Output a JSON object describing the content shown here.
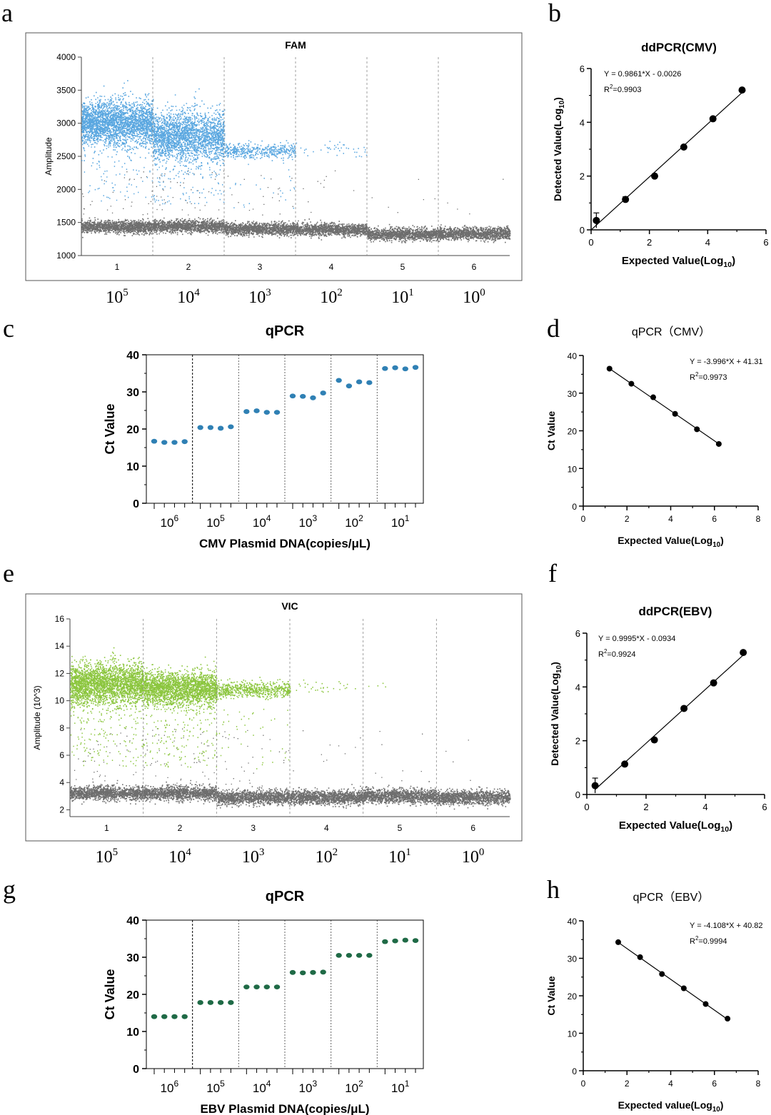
{
  "panels": {
    "a": "a",
    "b": "b",
    "c": "c",
    "d": "d",
    "e": "e",
    "f": "f",
    "g": "g",
    "h": "h"
  },
  "colors": {
    "fam_positive": "#5aa7e0",
    "vic_positive": "#8cc63f",
    "negative": "#6e6e6e",
    "qpcr_cmv": "#2f80b4",
    "qpcr_ebv": "#1f6a46",
    "fit": "#000000"
  },
  "chart_data": [
    {
      "id": "a",
      "type": "scatter",
      "title": "FAM",
      "ylabel": "Amplitude",
      "ylim": [
        1000,
        4000
      ],
      "yticks": [
        1000,
        1500,
        2000,
        2500,
        3000,
        3500,
        4000
      ],
      "wells": [
        "1",
        "2",
        "3",
        "4",
        "5",
        "6"
      ],
      "concentration_labels": [
        [
          "10",
          "5"
        ],
        [
          "10",
          "4"
        ],
        [
          "10",
          "3"
        ],
        [
          "10",
          "2"
        ],
        [
          "10",
          "1"
        ],
        [
          "10",
          "0"
        ]
      ],
      "positive_band_centers": [
        3000,
        2800,
        2580,
        null,
        null,
        null
      ],
      "negative_band_center": [
        1430,
        1440,
        1400,
        1390,
        1320,
        1330
      ]
    },
    {
      "id": "b",
      "type": "scatter",
      "title": "ddPCR(CMV)",
      "xlabel": "Expected Value(Log",
      "xlabel_sub": "10",
      "xlabel_end": ")",
      "ylabel": "Detected Value(Log",
      "ylabel_sub": "10",
      "ylabel_end": ")",
      "xlim": [
        0,
        6
      ],
      "ylim": [
        0,
        6
      ],
      "xticks": [
        0,
        2,
        4,
        6
      ],
      "yticks": [
        0,
        2,
        4,
        6
      ],
      "equation": "Y = 0.9861*X - 0.0026",
      "r2_prefix": "R",
      "r2_value": "=0.9903",
      "x": [
        0.18,
        1.18,
        2.18,
        3.18,
        4.18,
        5.18
      ],
      "y": [
        0.35,
        1.13,
        2.0,
        3.08,
        4.13,
        5.2
      ],
      "err": [
        0.28,
        0.1,
        0,
        0,
        0,
        0
      ],
      "fit": [
        [
          0,
          -0.0026
        ],
        [
          5.2,
          5.125
        ]
      ]
    },
    {
      "id": "c",
      "type": "scatter",
      "title": "qPCR",
      "ylabel": "Ct Value",
      "xlabel": "CMV Plasmid DNA(copies/μL)",
      "ylim": [
        0,
        40
      ],
      "yticks": [
        0,
        10,
        20,
        30,
        40
      ],
      "groups": [
        [
          "10",
          "6"
        ],
        [
          "10",
          "5"
        ],
        [
          "10",
          "4"
        ],
        [
          "10",
          "3"
        ],
        [
          "10",
          "2"
        ],
        [
          "10",
          "1"
        ]
      ],
      "values": [
        [
          16.7,
          16.4,
          16.4,
          16.6
        ],
        [
          20.4,
          20.4,
          20.2,
          20.6
        ],
        [
          24.7,
          24.9,
          24.5,
          24.5
        ],
        [
          28.9,
          28.8,
          28.4,
          29.7
        ],
        [
          33.1,
          31.6,
          32.7,
          32.5
        ],
        [
          36.3,
          36.5,
          36.2,
          36.6
        ]
      ]
    },
    {
      "id": "d",
      "type": "scatter",
      "title": "qPCR（CMV）",
      "xlabel": "Expected Value(Log",
      "xlabel_sub": "10",
      "xlabel_end": ")",
      "ylabel": "Ct Value",
      "xlim": [
        0,
        8
      ],
      "ylim": [
        0,
        40
      ],
      "xticks": [
        0,
        2,
        4,
        6,
        8
      ],
      "yticks": [
        0,
        10,
        20,
        30,
        40
      ],
      "equation": "Y = -3.996*X + 41.31",
      "r2_prefix": "R",
      "r2_value": "=0.9973",
      "x": [
        1.2,
        2.2,
        3.2,
        4.2,
        5.2,
        6.2
      ],
      "y": [
        36.5,
        32.5,
        28.9,
        24.5,
        20.4,
        16.5
      ],
      "fit": [
        [
          1.2,
          36.51
        ],
        [
          6.2,
          16.53
        ]
      ]
    },
    {
      "id": "e",
      "type": "scatter",
      "title": "VIC",
      "ylabel": "Amplitude (10^3)",
      "ylim": [
        1.5,
        16
      ],
      "yticks": [
        2,
        4,
        6,
        8,
        10,
        12,
        14,
        16
      ],
      "wells": [
        "1",
        "2",
        "3",
        "4",
        "5",
        "6"
      ],
      "concentration_labels": [
        [
          "10",
          "5"
        ],
        [
          "10",
          "4"
        ],
        [
          "10",
          "3"
        ],
        [
          "10",
          "2"
        ],
        [
          "10",
          "1"
        ],
        [
          "10",
          "0"
        ]
      ],
      "positive_band_centers": [
        11.2,
        10.9,
        10.8,
        null,
        null,
        null
      ],
      "negative_band_center": [
        3.2,
        3.2,
        2.9,
        2.9,
        3.0,
        2.9
      ]
    },
    {
      "id": "f",
      "type": "scatter",
      "title": "ddPCR(EBV)",
      "xlabel": "Expected Value(Log",
      "xlabel_sub": "10",
      "xlabel_end": ")",
      "ylabel": "Detected Value(Log",
      "ylabel_sub": "10",
      "ylabel_end": ")",
      "xlim": [
        0,
        6
      ],
      "ylim": [
        0,
        6
      ],
      "xticks": [
        0,
        2,
        4,
        6
      ],
      "yticks": [
        0,
        2,
        4,
        6
      ],
      "equation": "Y = 0.9995*X - 0.0934",
      "r2_prefix": "R",
      "r2_value": "=0.9924",
      "x": [
        0.28,
        1.28,
        2.28,
        3.28,
        4.28,
        5.28
      ],
      "y": [
        0.33,
        1.13,
        2.03,
        3.2,
        4.15,
        5.28
      ],
      "err": [
        0.28,
        0,
        0,
        0,
        0,
        0
      ],
      "fit": [
        [
          0.28,
          0.186
        ],
        [
          5.28,
          5.184
        ]
      ]
    },
    {
      "id": "g",
      "type": "scatter",
      "title": "qPCR",
      "ylabel": "Ct Value",
      "xlabel": "EBV Plasmid DNA(copies/μL)",
      "ylim": [
        0,
        40
      ],
      "yticks": [
        0,
        10,
        20,
        30,
        40
      ],
      "groups": [
        [
          "10",
          "6"
        ],
        [
          "10",
          "5"
        ],
        [
          "10",
          "4"
        ],
        [
          "10",
          "3"
        ],
        [
          "10",
          "2"
        ],
        [
          "10",
          "1"
        ]
      ],
      "values": [
        [
          14,
          14,
          14,
          14
        ],
        [
          17.8,
          17.8,
          17.8,
          17.8
        ],
        [
          22,
          22,
          22,
          22
        ],
        [
          25.9,
          25.8,
          25.9,
          26
        ],
        [
          30.5,
          30.5,
          30.5,
          30.5
        ],
        [
          34.2,
          34.4,
          34.6,
          34.5
        ]
      ]
    },
    {
      "id": "h",
      "type": "scatter",
      "title": "qPCR（EBV）",
      "xlabel": "Expected value(Log",
      "xlabel_sub": "10",
      "xlabel_end": ")",
      "ylabel": "Ct Value",
      "xlim": [
        0,
        8
      ],
      "ylim": [
        0,
        40
      ],
      "xticks": [
        0,
        2,
        4,
        6,
        8
      ],
      "yticks": [
        0,
        10,
        20,
        30,
        40
      ],
      "equation": "Y = -4.108*X + 40.82",
      "r2_prefix": "R",
      "r2_value": "=0.9994",
      "x": [
        1.6,
        2.6,
        3.6,
        4.6,
        5.6,
        6.6
      ],
      "y": [
        34.3,
        30.3,
        25.8,
        22.0,
        17.8,
        13.9
      ],
      "fit": [
        [
          1.6,
          34.25
        ],
        [
          6.6,
          13.71
        ]
      ]
    }
  ]
}
